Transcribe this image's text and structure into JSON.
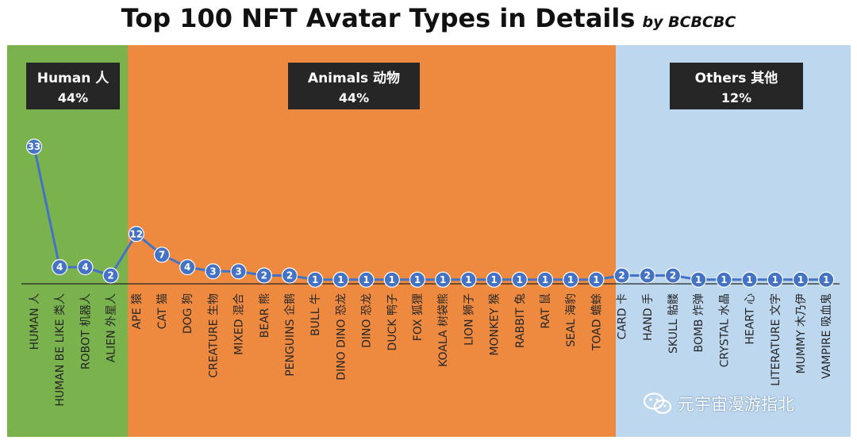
{
  "title": "Top 100 NFT Avatar Types  in Details",
  "byline": "by BCBCBC",
  "watermark": "元宇宙漫游指北",
  "colors": {
    "human": "#7ab34d",
    "animals": "#ee8a3f",
    "others": "#bdd7ee",
    "line": "#4472c4",
    "box": "#262626",
    "axis": "#262626"
  },
  "groups": [
    {
      "key": "human",
      "name": "Human 人",
      "percent": "44%"
    },
    {
      "key": "animals",
      "name": "Animals 动物",
      "percent": "44%"
    },
    {
      "key": "others",
      "name": "Others 其他",
      "percent": "12%"
    }
  ],
  "chart_data": {
    "type": "line",
    "title": "Top 100 NFT Avatar Types  in Details",
    "categories": [
      "HUMAN 人",
      "HUMAN BE LIKE 类人",
      "ROBOT 机器人",
      "ALIEN 外星人",
      "APE 猿",
      "CAT 猫",
      "DOG 狗",
      "CREATURE 生物",
      "MIXED 混合",
      "BEAR 熊",
      "PENGUINS 企鹅",
      "BULL 牛",
      "DINO DINO 恐龙",
      "DINO 恐龙",
      "DUCK 鸭子",
      "FOX 狐狸",
      "KOALA 树袋熊",
      "LION 狮子",
      "MONKEY 猴",
      "RABBIT 兔",
      "RAT 鼠",
      "SEAL 海豹",
      "TOAD 蟾蜍",
      "CARD 卡",
      "HAND 手",
      "SKULL 骷髅",
      "BOMB 炸弹",
      "CRYSTAL 水晶",
      "HEART 心",
      "LITERATURE 文字",
      "MUMMY 木乃伊",
      "VAMPIRE 吸血鬼"
    ],
    "values": [
      33,
      4,
      4,
      2,
      12,
      7,
      4,
      3,
      3,
      2,
      2,
      1,
      1,
      1,
      1,
      1,
      1,
      1,
      1,
      1,
      1,
      1,
      1,
      2,
      2,
      2,
      1,
      1,
      1,
      1,
      1,
      1
    ],
    "group_of_category": [
      "human",
      "human",
      "human",
      "human",
      "animals",
      "animals",
      "animals",
      "animals",
      "animals",
      "animals",
      "animals",
      "animals",
      "animals",
      "animals",
      "animals",
      "animals",
      "animals",
      "animals",
      "animals",
      "animals",
      "animals",
      "animals",
      "animals",
      "others",
      "others",
      "others",
      "others",
      "others",
      "others",
      "others",
      "others",
      "others"
    ],
    "ylim": [
      0,
      38
    ],
    "xlabel": "",
    "ylabel": "",
    "grid": false,
    "legend": "none"
  }
}
